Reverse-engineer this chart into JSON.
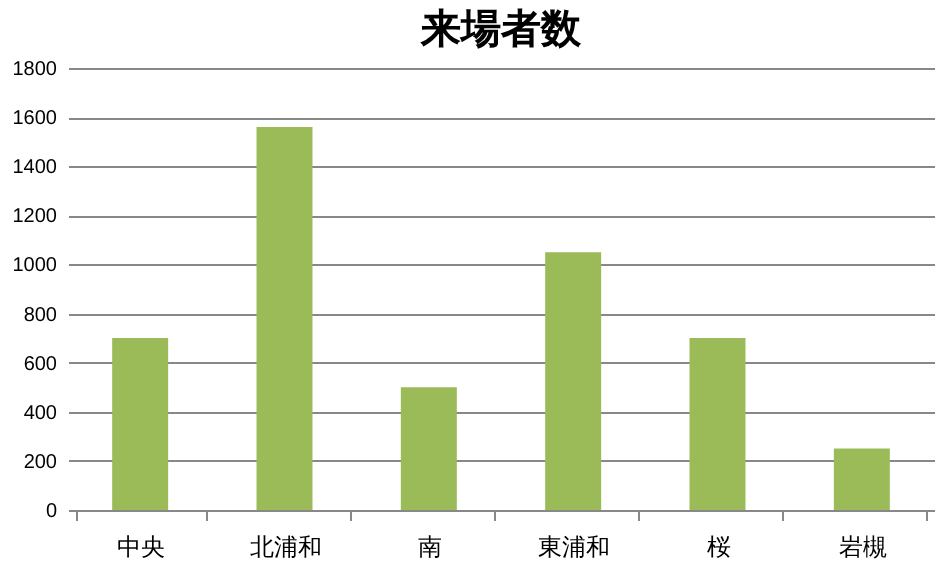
{
  "chart_data": {
    "type": "bar",
    "title": "来場者数",
    "categories": [
      "中央",
      "北浦和",
      "南",
      "東浦和",
      "桜",
      "岩槻"
    ],
    "values": [
      700,
      1560,
      500,
      1050,
      700,
      250
    ],
    "color": "#9bbb59",
    "ylim": [
      0,
      1800
    ],
    "yticks": [
      0,
      200,
      400,
      600,
      800,
      1000,
      1200,
      1400,
      1600,
      1800
    ],
    "grid": "y"
  }
}
